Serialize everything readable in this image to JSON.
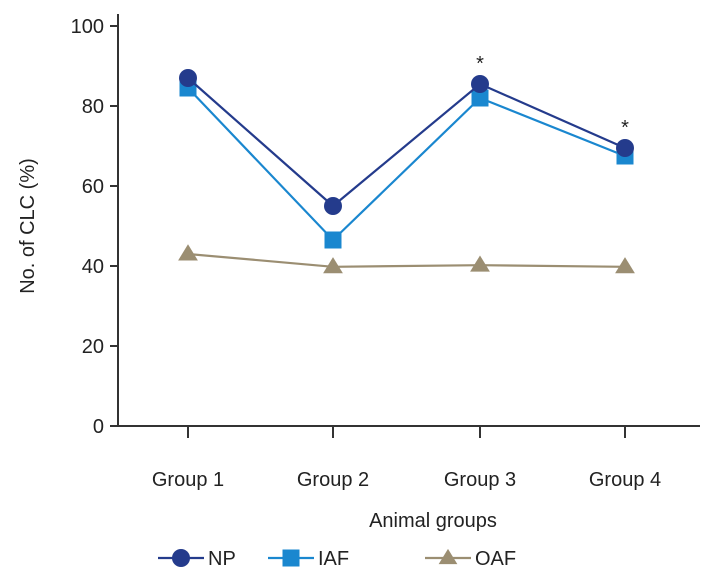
{
  "chart_data": {
    "type": "line",
    "title": "",
    "xlabel": "Animal groups",
    "ylabel": "No. of CLC (%)",
    "categories": [
      "Group 1",
      "Group 2",
      "Group 3",
      "Group 4"
    ],
    "ylim": [
      0,
      100
    ],
    "yticks": [
      0,
      20,
      40,
      60,
      80,
      100
    ],
    "grid": false,
    "legend_position": "bottom",
    "series": [
      {
        "name": "NP",
        "values": [
          87,
          55,
          85.5,
          69.5
        ],
        "color": "#243b8c",
        "marker": "circle"
      },
      {
        "name": "IAF",
        "values": [
          84.5,
          46.5,
          82,
          67.5
        ],
        "color": "#1a87cf",
        "marker": "square"
      },
      {
        "name": "OAF",
        "values": [
          43,
          39.8,
          40.2,
          39.8
        ],
        "color": "#9b8e72",
        "marker": "triangle"
      }
    ],
    "annotations": [
      {
        "text": "*",
        "category": "Group 3"
      },
      {
        "text": "*",
        "category": "Group 4"
      }
    ]
  }
}
